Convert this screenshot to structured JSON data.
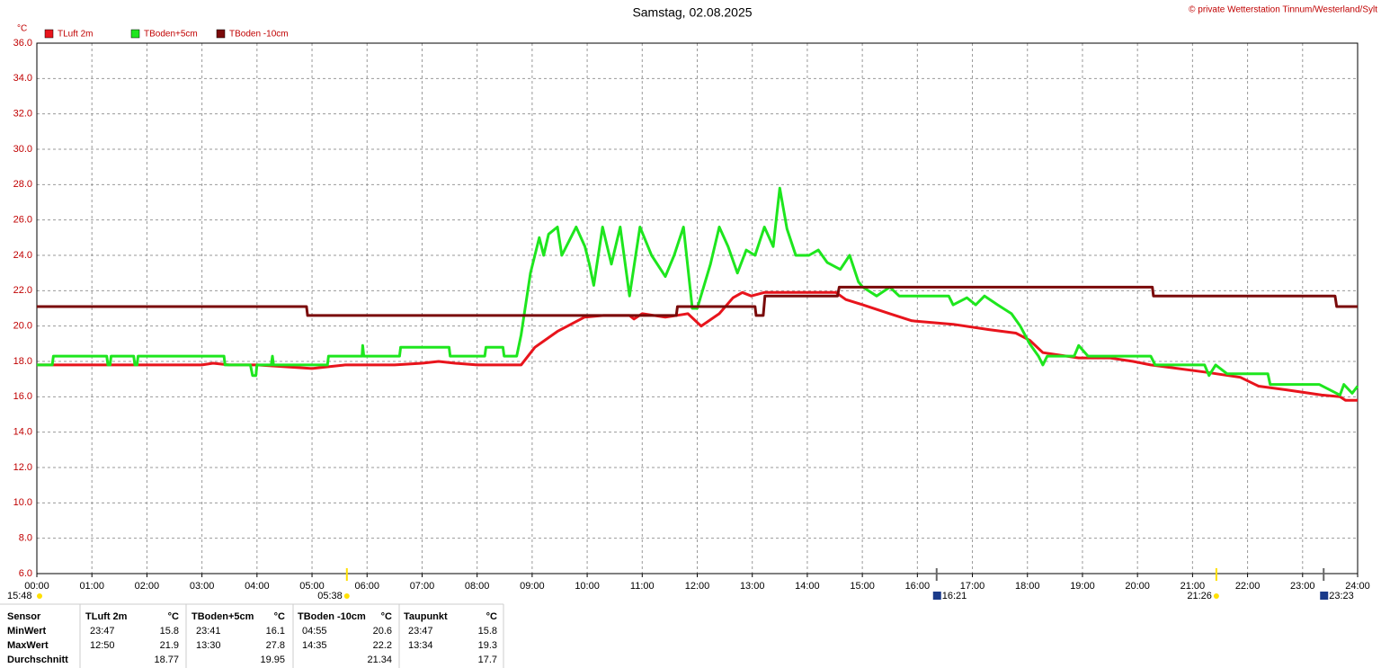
{
  "chart_data": {
    "type": "line",
    "title": "Samstag, 02.08.2025",
    "copyright": "© private Wetterstation Tinnum/Westerland/Sylt",
    "y_label": "°C",
    "xlim": [
      0,
      24
    ],
    "xticks": [
      {
        "value": 0,
        "label": "00:00"
      },
      {
        "value": 1,
        "label": "01:00"
      },
      {
        "value": 2,
        "label": "02:00"
      },
      {
        "value": 3,
        "label": "03:00"
      },
      {
        "value": 4,
        "label": "04:00"
      },
      {
        "value": 5,
        "label": "05:00"
      },
      {
        "value": 6,
        "label": "06:00"
      },
      {
        "value": 7,
        "label": "07:00"
      },
      {
        "value": 8,
        "label": "08:00"
      },
      {
        "value": 9,
        "label": "09:00"
      },
      {
        "value": 10,
        "label": "10:00"
      },
      {
        "value": 11,
        "label": "11:00"
      },
      {
        "value": 12,
        "label": "12:00"
      },
      {
        "value": 13,
        "label": "13:00"
      },
      {
        "value": 14,
        "label": "14:00"
      },
      {
        "value": 15,
        "label": "15:00"
      },
      {
        "value": 16,
        "label": "16:00"
      },
      {
        "value": 17,
        "label": "17:00"
      },
      {
        "value": 18,
        "label": "18:00"
      },
      {
        "value": 19,
        "label": "19:00"
      },
      {
        "value": 20,
        "label": "20:00"
      },
      {
        "value": 21,
        "label": "21:00"
      },
      {
        "value": 22,
        "label": "22:00"
      },
      {
        "value": 23,
        "label": "23:00"
      },
      {
        "value": 24,
        "label": "24:00"
      }
    ],
    "ylim": [
      6,
      36
    ],
    "yticks": [
      {
        "value": 6,
        "label": "6.0"
      },
      {
        "value": 8,
        "label": "8.0"
      },
      {
        "value": 10,
        "label": "10.0"
      },
      {
        "value": 12,
        "label": "12.0"
      },
      {
        "value": 14,
        "label": "14.0"
      },
      {
        "value": 16,
        "label": "16.0"
      },
      {
        "value": 18,
        "label": "18.0"
      },
      {
        "value": 20,
        "label": "20.0"
      },
      {
        "value": 22,
        "label": "22.0"
      },
      {
        "value": 24,
        "label": "24.0"
      },
      {
        "value": 26,
        "label": "26.0"
      },
      {
        "value": 28,
        "label": "28.0"
      },
      {
        "value": 30,
        "label": "30.0"
      },
      {
        "value": 32,
        "label": "32.0"
      },
      {
        "value": 34,
        "label": "34.0"
      },
      {
        "value": 36,
        "label": "36.0"
      }
    ],
    "grid": true,
    "series": [
      {
        "name": "TLuft 2m",
        "color": "#e8141c",
        "x": [
          0,
          0.5,
          1,
          1.5,
          2,
          2.5,
          3,
          3.2,
          3.5,
          4,
          4.5,
          5,
          5.3,
          5.6,
          6,
          6.5,
          7,
          7.3,
          7.6,
          8,
          8.5,
          8.8,
          9.05,
          9.46,
          9.95,
          10.3,
          10.77,
          10.85,
          11.0,
          11.42,
          11.83,
          12.07,
          12.4,
          12.65,
          12.82,
          12.98,
          13.22,
          14.0,
          14.52,
          14.7,
          15.01,
          15.5,
          15.9,
          16.65,
          17.3,
          17.79,
          18.04,
          18.28,
          18.93,
          19.5,
          19.92,
          20.24,
          21.22,
          21.87,
          22.2,
          22.69,
          23.35,
          23.68,
          23.78,
          24
        ],
        "values": [
          17.8,
          17.8,
          17.8,
          17.8,
          17.8,
          17.8,
          17.8,
          17.9,
          17.8,
          17.8,
          17.7,
          17.6,
          17.7,
          17.8,
          17.8,
          17.8,
          17.9,
          18.0,
          17.9,
          17.8,
          17.8,
          17.8,
          18.8,
          19.7,
          20.5,
          20.6,
          20.6,
          20.4,
          20.7,
          20.5,
          20.7,
          20.0,
          20.7,
          21.6,
          21.9,
          21.7,
          21.9,
          21.9,
          21.9,
          21.5,
          21.2,
          20.7,
          20.3,
          20.1,
          19.8,
          19.6,
          19.2,
          18.5,
          18.2,
          18.2,
          18.0,
          17.8,
          17.4,
          17.1,
          16.6,
          16.4,
          16.1,
          16.0,
          15.8,
          15.8
        ]
      },
      {
        "name": "TBoden+5cm",
        "color": "#1ee61e",
        "x": [
          0,
          0.28,
          0.3,
          1.27,
          1.29,
          1.33,
          1.35,
          1.76,
          1.78,
          1.82,
          1.84,
          3.4,
          3.42,
          3.88,
          3.92,
          3.98,
          4.0,
          4.26,
          4.28,
          4.3,
          5.28,
          5.3,
          5.91,
          5.92,
          5.94,
          6.59,
          6.61,
          7.49,
          7.51,
          8.14,
          8.16,
          8.47,
          8.49,
          8.72,
          8.8,
          8.97,
          9.13,
          9.21,
          9.3,
          9.46,
          9.54,
          9.8,
          9.96,
          10.04,
          10.12,
          10.28,
          10.44,
          10.6,
          10.77,
          10.96,
          11.17,
          11.42,
          11.58,
          11.75,
          11.91,
          12.0,
          12.24,
          12.4,
          12.56,
          12.73,
          12.89,
          13.05,
          13.22,
          13.38,
          13.5,
          13.63,
          13.79,
          14.03,
          14.2,
          14.36,
          14.6,
          14.77,
          14.93,
          15.01,
          15.26,
          15.5,
          15.67,
          16.57,
          16.65,
          16.9,
          17.06,
          17.22,
          17.46,
          17.71,
          17.87,
          18.04,
          18.2,
          18.28,
          18.36,
          18.85,
          18.93,
          19.1,
          20.24,
          20.32,
          21.22,
          21.3,
          21.42,
          21.63,
          22.37,
          22.41,
          23.3,
          23.68,
          23.75,
          23.9,
          24
        ],
        "values": [
          17.8,
          17.8,
          18.3,
          18.3,
          17.8,
          17.8,
          18.3,
          18.3,
          17.8,
          17.8,
          18.3,
          18.3,
          17.8,
          17.8,
          17.2,
          17.2,
          17.8,
          17.8,
          18.3,
          17.8,
          17.8,
          18.3,
          18.3,
          18.9,
          18.3,
          18.3,
          18.8,
          18.8,
          18.3,
          18.3,
          18.8,
          18.8,
          18.3,
          18.3,
          19.5,
          23.0,
          25.0,
          24.0,
          25.2,
          25.6,
          24.0,
          25.6,
          24.5,
          23.5,
          22.3,
          25.6,
          23.5,
          25.6,
          21.7,
          25.6,
          24.0,
          22.8,
          24.0,
          25.6,
          21.0,
          21.0,
          23.5,
          25.6,
          24.5,
          23.0,
          24.3,
          24.0,
          25.6,
          24.5,
          27.8,
          25.5,
          24.0,
          24.0,
          24.3,
          23.6,
          23.2,
          24.0,
          22.5,
          22.2,
          21.7,
          22.2,
          21.7,
          21.7,
          21.2,
          21.6,
          21.2,
          21.7,
          21.2,
          20.7,
          20.0,
          19.0,
          18.3,
          17.8,
          18.3,
          18.3,
          18.9,
          18.3,
          18.3,
          17.8,
          17.8,
          17.2,
          17.8,
          17.3,
          17.3,
          16.7,
          16.7,
          16.1,
          16.7,
          16.2,
          16.6
        ]
      },
      {
        "name": "TBoden -10cm",
        "color": "#7a0a0a",
        "x": [
          0,
          4.9,
          4.92,
          11.62,
          11.64,
          13.05,
          13.07,
          13.2,
          13.23,
          14.55,
          14.58,
          20.27,
          20.29,
          23.59,
          23.62,
          24
        ],
        "values": [
          21.1,
          21.1,
          20.6,
          20.6,
          21.1,
          21.1,
          20.6,
          20.6,
          21.7,
          21.7,
          22.2,
          22.2,
          21.7,
          21.7,
          21.1,
          21.1
        ]
      }
    ],
    "day_length": "15:48",
    "events": [
      {
        "x": 5.633,
        "label": "05:38",
        "icon": "sun"
      },
      {
        "x": 16.35,
        "label": "16:21",
        "icon": "moon"
      },
      {
        "x": 21.433,
        "label": "21:26",
        "icon": "sun"
      },
      {
        "x": 23.383,
        "label": "23:23",
        "icon": "moon"
      }
    ]
  },
  "table": {
    "header": [
      "Sensor",
      "TLuft 2m",
      "°C",
      "TBoden+5cm",
      "°C",
      "TBoden -10cm",
      "°C",
      "Taupunkt",
      "°C"
    ],
    "rows": [
      {
        "label": "MinWert",
        "cells": [
          {
            "time": "23:47",
            "value": 15.8
          },
          {
            "time": "23:41",
            "value": 16.1
          },
          {
            "time": "04:55",
            "value": 20.6
          },
          {
            "time": "23:47",
            "value": 15.8
          }
        ]
      },
      {
        "label": "MaxWert",
        "cells": [
          {
            "time": "12:50",
            "value": 21.9
          },
          {
            "time": "13:30",
            "value": 27.8
          },
          {
            "time": "14:35",
            "value": 22.2
          },
          {
            "time": "13:34",
            "value": 19.3
          }
        ]
      },
      {
        "label": "Durchschnitt",
        "cells": [
          {
            "value": 18.77
          },
          {
            "value": 19.95
          },
          {
            "value": 21.34
          },
          {
            "value": 17.7
          }
        ]
      }
    ]
  }
}
